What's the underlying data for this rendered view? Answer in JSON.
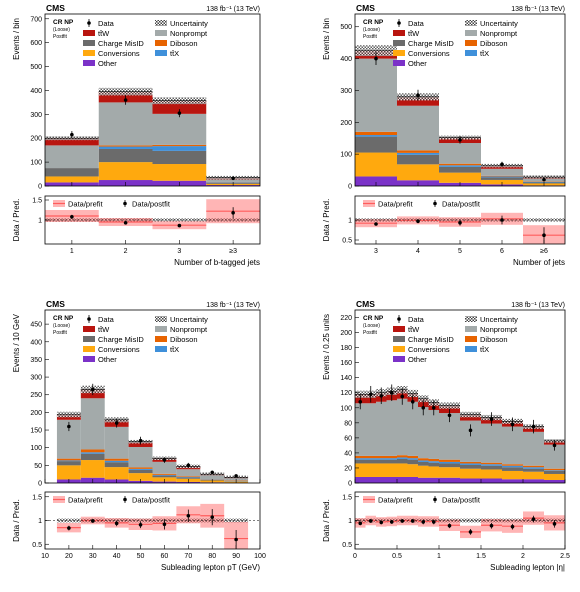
{
  "colors": {
    "Other": "#7b32c8",
    "Conversions": "#ffa90e",
    "Charge MisID": "#6b6b6b",
    "Nonprompt": "#a3aaaa",
    "Diboson": "#e76300",
    "ttX": "#3f90da",
    "ttW": "#b9150f",
    "uncertainty": "#555555",
    "prefit": "#ff5c5c"
  },
  "legend_labels": {
    "data": "Data",
    "uncertainty": "Uncertainty",
    "ttW": "tt̄W",
    "nonprompt": "Nonprompt",
    "charge_misid": "Charge MisID",
    "diboson": "Diboson",
    "conversions": "Conversions",
    "ttX": "tt̄X",
    "other": "Other",
    "ratio_prefit": "Data/prefit",
    "ratio_postfit": "Data/postfit"
  },
  "chart_data": [
    {
      "type": "bar",
      "cms_label": "CMS",
      "region": [
        "CR NP",
        "(Loose)",
        "Postfit"
      ],
      "lumi": "138 fb⁻¹ (13 TeV)",
      "ylabel": "Events / bin",
      "xlabel": "Number of b-tagged jets",
      "ratio_ylabel": "Data / Pred.",
      "ylim": [
        0,
        720
      ],
      "yticks": [
        "0",
        "100",
        "200",
        "300",
        "400",
        "500",
        "600",
        "700"
      ],
      "ratio_ylim": [
        0.4,
        1.6
      ],
      "ratio_yticks": [
        "1.5",
        "1"
      ],
      "edges": [
        0.5,
        1.5,
        2.5,
        3.5,
        4.5
      ],
      "xtick_labels": [
        "1",
        "2",
        "3",
        "≥3"
      ],
      "stack": {
        "Other": [
          15,
          25,
          22,
          4
        ],
        "Conversions": [
          25,
          75,
          70,
          5
        ],
        "Charge MisID": [
          35,
          55,
          55,
          5
        ],
        "ttX": [
          0,
          10,
          20,
          2
        ],
        "Diboson": [
          0,
          5,
          5,
          1
        ],
        "Nonprompt": [
          95,
          180,
          130,
          10
        ],
        "ttW": [
          30,
          45,
          55,
          8
        ]
      },
      "data": [
        215,
        360,
        305,
        32
      ],
      "data_err": [
        15,
        20,
        17,
        6
      ],
      "ratio_prefit": [
        1.1,
        0.95,
        0.87,
        1.22
      ],
      "ratio_prefit_err": [
        0.15,
        0.1,
        0.1,
        0.3
      ],
      "ratio_postfit": [
        1.08,
        0.93,
        0.86,
        1.18
      ],
      "ratio_postfit_err": [
        0.05,
        0.04,
        0.04,
        0.14
      ]
    },
    {
      "type": "bar",
      "cms_label": "CMS",
      "region": [
        "CR NP",
        "(Loose)",
        "Postfit"
      ],
      "lumi": "138 fb⁻¹ (13 TeV)",
      "ylabel": "Events / bin",
      "xlabel": "Number of jets",
      "ratio_ylabel": "Data / Pred.",
      "ylim": [
        0,
        540
      ],
      "yticks": [
        "0",
        "100",
        "200",
        "300",
        "400",
        "500"
      ],
      "ratio_ylim": [
        0.4,
        1.6
      ],
      "ratio_yticks": [
        "1",
        "0.5"
      ],
      "edges": [
        2.5,
        3.5,
        4.5,
        5.5,
        6.5,
        7.5
      ],
      "xtick_labels": [
        "3",
        "4",
        "5",
        "6",
        "≥6"
      ],
      "stack": {
        "Other": [
          30,
          18,
          10,
          5,
          2
        ],
        "Conversions": [
          75,
          50,
          32,
          14,
          6
        ],
        "Charge MisID": [
          50,
          30,
          18,
          8,
          3
        ],
        "ttX": [
          5,
          6,
          5,
          3,
          2
        ],
        "Diboson": [
          10,
          8,
          5,
          2,
          1
        ],
        "Nonprompt": [
          230,
          140,
          65,
          22,
          8
        ],
        "ttW": [
          25,
          28,
          17,
          10,
          6
        ]
      },
      "data": [
        400,
        285,
        145,
        68,
        20
      ],
      "data_err": [
        20,
        17,
        12,
        8,
        5
      ],
      "ratio_prefit": [
        0.92,
        0.99,
        0.95,
        1.03,
        0.62
      ],
      "ratio_prefit_err": [
        0.1,
        0.1,
        0.12,
        0.15,
        0.25
      ],
      "ratio_postfit": [
        0.9,
        0.97,
        0.93,
        1.0,
        0.62
      ],
      "ratio_postfit_err": [
        0.04,
        0.05,
        0.07,
        0.11,
        0.2
      ]
    },
    {
      "type": "bar",
      "cms_label": "CMS",
      "region": [
        "CR NP",
        "(Loose)",
        "Postfit"
      ],
      "lumi": "138 fb⁻¹ (13 TeV)",
      "ylabel": "Events / 10 GeV",
      "xlabel": "Subleading lepton pT (GeV)",
      "ratio_ylabel": "Data / Pred.",
      "ylim": [
        0,
        490
      ],
      "yticks": [
        "0",
        "50",
        "100",
        "150",
        "200",
        "250",
        "300",
        "350",
        "400",
        "450"
      ],
      "ratio_ylim": [
        0.4,
        1.6
      ],
      "ratio_yticks": [
        "1.5",
        "1",
        "0.5"
      ],
      "edges": [
        15,
        25,
        35,
        45,
        55,
        65,
        75,
        85,
        95
      ],
      "xlim": [
        10,
        100
      ],
      "xticks": [
        10,
        20,
        30,
        40,
        50,
        60,
        70,
        80,
        90,
        100
      ],
      "stack": {
        "Other": [
          10,
          15,
          10,
          6,
          4,
          3,
          2,
          1
        ],
        "Conversions": [
          40,
          50,
          35,
          22,
          12,
          9,
          5,
          3
        ],
        "Charge MisID": [
          12,
          18,
          14,
          9,
          5,
          4,
          2,
          1
        ],
        "ttX": [
          2,
          4,
          4,
          3,
          2,
          1,
          1,
          1
        ],
        "Diboson": [
          5,
          8,
          6,
          4,
          3,
          2,
          1,
          1
        ],
        "Nonprompt": [
          110,
          145,
          90,
          58,
          34,
          20,
          10,
          6
        ],
        "ttW": [
          15,
          25,
          20,
          15,
          10,
          8,
          4,
          3
        ]
      },
      "data": [
        160,
        265,
        170,
        120,
        65,
        50,
        30,
        20
      ],
      "data_err": [
        13,
        16,
        13,
        11,
        8,
        7,
        5,
        4
      ],
      "ratio_prefit": [
        0.85,
        1.0,
        0.95,
        0.92,
        0.94,
        1.12,
        1.1,
        0.62
      ],
      "ratio_prefit_err": [
        0.1,
        0.08,
        0.1,
        0.12,
        0.15,
        0.18,
        0.25,
        0.35
      ],
      "ratio_postfit": [
        0.84,
        0.99,
        0.94,
        0.91,
        0.92,
        1.1,
        1.07,
        0.6
      ],
      "ratio_postfit_err": [
        0.05,
        0.04,
        0.06,
        0.07,
        0.11,
        0.13,
        0.17,
        0.2
      ]
    },
    {
      "type": "bar",
      "cms_label": "CMS",
      "region": [
        "CR NP",
        "(Loose)",
        "Postfit"
      ],
      "lumi": "138 fb⁻¹ (13 TeV)",
      "ylabel": "Events / 0.25 units",
      "xlabel": "Subleading lepton |η|",
      "ratio_ylabel": "Data / Pred.",
      "ylim": [
        0,
        230
      ],
      "yticks": [
        "0",
        "20",
        "40",
        "60",
        "80",
        "100",
        "120",
        "140",
        "160",
        "180",
        "200",
        "220"
      ],
      "ratio_ylim": [
        0.4,
        1.6
      ],
      "ratio_yticks": [
        "1.5",
        "1",
        "0.5"
      ],
      "edges": [
        0,
        0.125,
        0.25,
        0.375,
        0.5,
        0.625,
        0.75,
        0.875,
        1.0,
        1.25,
        1.5,
        1.75,
        2.0,
        2.25,
        2.5
      ],
      "xlim": [
        0,
        2.5
      ],
      "xticks": [
        0,
        0.5,
        1,
        1.5,
        2,
        2.5
      ],
      "stack": {
        "Other": [
          8,
          8,
          8,
          8,
          8,
          8,
          7,
          7,
          7,
          6,
          6,
          5,
          5,
          4
        ],
        "Conversions": [
          18,
          18,
          18,
          18,
          18,
          17,
          16,
          15,
          14,
          13,
          12,
          11,
          10,
          8
        ],
        "Charge MisID": [
          5,
          5,
          5,
          5,
          6,
          6,
          5,
          5,
          5,
          5,
          5,
          5,
          4,
          4
        ],
        "ttX": [
          2,
          2,
          2,
          2,
          2,
          2,
          2,
          2,
          2,
          2,
          2,
          2,
          2,
          1
        ],
        "Diboson": [
          3,
          3,
          3,
          3,
          3,
          3,
          3,
          3,
          3,
          2,
          2,
          2,
          2,
          2
        ],
        "Nonprompt": [
          70,
          70,
          72,
          74,
          75,
          72,
          68,
          65,
          62,
          55,
          52,
          50,
          45,
          32
        ],
        "ttW": [
          12,
          12,
          12,
          12,
          12,
          11,
          11,
          10,
          10,
          8,
          8,
          7,
          7,
          5
        ]
      },
      "data": [
        108,
        118,
        116,
        120,
        115,
        108,
        100,
        100,
        90,
        70,
        85,
        78,
        75,
        50
      ],
      "data_err": [
        10,
        11,
        11,
        11,
        11,
        10,
        10,
        10,
        9,
        8,
        9,
        9,
        9,
        7
      ],
      "ratio_prefit": [
        0.95,
        1.0,
        0.97,
        0.98,
        1.0,
        1.0,
        0.98,
        0.98,
        0.9,
        0.76,
        0.9,
        0.88,
        1.05,
        0.95
      ],
      "ratio_prefit_err": [
        0.1,
        0.1,
        0.1,
        0.1,
        0.1,
        0.1,
        0.11,
        0.11,
        0.12,
        0.13,
        0.13,
        0.14,
        0.14,
        0.16
      ],
      "ratio_postfit": [
        0.94,
        0.99,
        0.96,
        0.97,
        0.99,
        0.99,
        0.97,
        0.97,
        0.89,
        0.76,
        0.89,
        0.87,
        1.03,
        0.93
      ],
      "ratio_postfit_err": [
        0.04,
        0.04,
        0.04,
        0.04,
        0.04,
        0.04,
        0.05,
        0.05,
        0.05,
        0.06,
        0.06,
        0.06,
        0.07,
        0.08
      ]
    }
  ]
}
